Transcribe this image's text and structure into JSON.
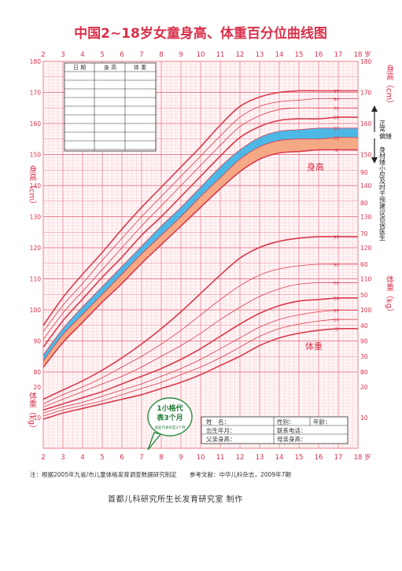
{
  "title": "中国2~18岁女童身高、体重百分位曲线图",
  "footnote": {
    "note": "注：根据2005年九省/市儿童体格发育调查数据研究制定",
    "reference": "参考文献：中华儿科杂志，2009年7期"
  },
  "credit": "首都儿科研究所生长发育研究室  制作",
  "left_axis_labels": {
    "height": "身高（cm）",
    "weight": "体重（kg）"
  },
  "right_axis_labels": {
    "height": "身高（cm）",
    "weight": "体重（kg）"
  },
  "age_unit": "岁",
  "curve_labels": {
    "height": "身高",
    "weight": "体重"
  },
  "side_note": {
    "normal": "正常",
    "low": "偏矮",
    "short": "身材矮小应及时干预建议咨询医生"
  },
  "record_table": {
    "headers": [
      "日 期",
      "身 高",
      "体 重"
    ],
    "rows": 10
  },
  "info_box": {
    "name": "姓　名：",
    "sex": "性别：",
    "age": "年龄：",
    "birth": "出生年月：",
    "phone": "联系电话：",
    "father": "父亲身高：",
    "mother": "母亲身高："
  },
  "callout": {
    "line1": "1小格代",
    "line2": "表3个月",
    "line3": "此处代表的是3个月"
  },
  "colors": {
    "grid_major": "#e8818e",
    "grid_minor": "#f6c4cb",
    "curve": "#d93a4c",
    "axis_text": "#d9304a",
    "band_normal": "#3ab3e6",
    "band_low": "#f4a27a",
    "title": "#d9304a"
  },
  "chart_data": [
    {
      "type": "line",
      "name": "height",
      "x": [
        2,
        3,
        4,
        5,
        6,
        7,
        8,
        9,
        10,
        11,
        12,
        13,
        14,
        15,
        16,
        17,
        18
      ],
      "xlim": [
        2,
        18
      ],
      "ylim": [
        80,
        180
      ],
      "y_ticks": [
        80,
        90,
        100,
        110,
        120,
        130,
        140,
        150,
        160,
        170,
        180
      ],
      "x_ticks": [
        2,
        3,
        4,
        5,
        6,
        7,
        8,
        9,
        10,
        11,
        12,
        13,
        14,
        15,
        16,
        17,
        18
      ],
      "series": [
        {
          "name": "97",
          "values": [
            95,
            104,
            111.5,
            118.5,
            126,
            133,
            139.5,
            146,
            152.5,
            159.5,
            165.5,
            168.5,
            170,
            170.5,
            170.5,
            170.5,
            170.5
          ]
        },
        {
          "name": "90",
          "values": [
            93,
            101.5,
            108.5,
            116,
            123,
            130,
            136.5,
            143,
            149.5,
            156,
            162,
            165.5,
            167,
            167.5,
            168,
            168,
            168
          ]
        },
        {
          "name": "75",
          "values": [
            90.5,
            99,
            106,
            113,
            120,
            127,
            133.5,
            140,
            146.5,
            153,
            159,
            162.5,
            164.5,
            165,
            165,
            165,
            165
          ]
        },
        {
          "name": "50",
          "values": [
            88,
            96.5,
            103.5,
            110.5,
            117,
            124,
            130,
            136.5,
            143,
            149.5,
            155.5,
            159,
            161,
            161.5,
            161.5,
            162,
            162
          ]
        },
        {
          "name": "25",
          "values": [
            85.5,
            94,
            101,
            107.5,
            114,
            120.5,
            127,
            133,
            139.5,
            146,
            151.5,
            155.5,
            157.5,
            158,
            158.5,
            158.5,
            158.5
          ]
        },
        {
          "name": "10",
          "values": [
            83.5,
            92,
            98.5,
            105,
            111.5,
            118,
            124,
            130,
            136.5,
            142.5,
            148.5,
            152.5,
            154.5,
            155,
            155,
            155.5,
            155.5
          ]
        },
        {
          "name": "3",
          "values": [
            81.5,
            89.5,
            96,
            102.5,
            108.5,
            115,
            121,
            127,
            133,
            139,
            144.5,
            148.5,
            150.5,
            151,
            151.5,
            151.5,
            151.5
          ]
        }
      ]
    },
    {
      "type": "line",
      "name": "weight",
      "x": [
        2,
        3,
        4,
        5,
        6,
        7,
        8,
        9,
        10,
        11,
        12,
        13,
        14,
        15,
        16,
        17,
        18
      ],
      "xlim": [
        2,
        18
      ],
      "ylim": [
        0,
        100
      ],
      "y_ticks": [
        10,
        20,
        30,
        40,
        50,
        60,
        70,
        80,
        90,
        100
      ],
      "series": [
        {
          "name": "97",
          "values": [
            16,
            19,
            22,
            25.5,
            29.5,
            34,
            39,
            44.5,
            50.5,
            56.5,
            62,
            65.5,
            67.5,
            68.5,
            69,
            69,
            69
          ]
        },
        {
          "name": "90",
          "values": [
            14.5,
            17.5,
            20,
            23,
            26.5,
            30,
            34,
            38.5,
            43.5,
            48.5,
            53,
            56.5,
            58.5,
            59.5,
            60,
            60,
            60
          ]
        },
        {
          "name": "75",
          "values": [
            13.5,
            16,
            18.5,
            21,
            23.5,
            26.5,
            30,
            33.5,
            37.5,
            42,
            46,
            49.5,
            52,
            53.5,
            54,
            54,
            54
          ]
        },
        {
          "name": "50",
          "values": [
            12.5,
            14.5,
            16.5,
            18.5,
            21,
            23.5,
            26,
            29,
            32.5,
            36.5,
            40.5,
            44,
            46.5,
            48,
            48.5,
            49,
            49
          ]
        },
        {
          "name": "25",
          "values": [
            11.5,
            13.5,
            15,
            17,
            19,
            21,
            23.5,
            26,
            29,
            32.5,
            36,
            39.5,
            42,
            43.5,
            44.5,
            45,
            45
          ]
        },
        {
          "name": "10",
          "values": [
            10.5,
            12.5,
            14,
            15.5,
            17.5,
            19.5,
            21.5,
            24,
            26.5,
            29.5,
            33,
            36.5,
            39,
            40.5,
            41.5,
            42,
            42
          ]
        },
        {
          "name": "3",
          "values": [
            9.5,
            11.5,
            13,
            14.5,
            16,
            17.5,
            19.5,
            21.5,
            24,
            27,
            30,
            33.5,
            36,
            37.5,
            38.5,
            39,
            39
          ]
        }
      ]
    }
  ]
}
